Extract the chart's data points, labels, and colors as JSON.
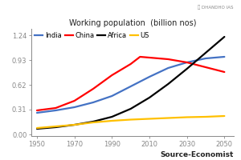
{
  "title": "Working population  (billion nos)",
  "x_ticks": [
    1950,
    1970,
    1990,
    2010,
    2030,
    2050
  ],
  "xlim": [
    1947,
    2055
  ],
  "ylim": [
    -0.02,
    1.32
  ],
  "y_ticks": [
    0.0,
    0.31,
    0.62,
    0.93,
    1.24
  ],
  "series": {
    "India": {
      "color": "#4472C4",
      "x": [
        1950,
        1960,
        1970,
        1980,
        1990,
        2000,
        2010,
        2020,
        2030,
        2040,
        2050
      ],
      "y": [
        0.27,
        0.3,
        0.34,
        0.4,
        0.48,
        0.6,
        0.72,
        0.83,
        0.9,
        0.95,
        0.97
      ]
    },
    "China": {
      "color": "#FF0000",
      "x": [
        1950,
        1960,
        1970,
        1980,
        1990,
        2000,
        2005,
        2010,
        2020,
        2030,
        2040,
        2050
      ],
      "y": [
        0.3,
        0.33,
        0.42,
        0.57,
        0.74,
        0.88,
        0.97,
        0.96,
        0.94,
        0.9,
        0.84,
        0.78
      ]
    },
    "Africa": {
      "color": "#000000",
      "x": [
        1950,
        1960,
        1970,
        1980,
        1990,
        2000,
        2010,
        2020,
        2030,
        2040,
        2050
      ],
      "y": [
        0.07,
        0.09,
        0.12,
        0.16,
        0.22,
        0.32,
        0.46,
        0.63,
        0.82,
        1.02,
        1.22
      ]
    },
    "US": {
      "color": "#FFC000",
      "x": [
        1950,
        1960,
        1970,
        1980,
        1990,
        2000,
        2010,
        2020,
        2030,
        2040,
        2050
      ],
      "y": [
        0.08,
        0.1,
        0.12,
        0.15,
        0.17,
        0.185,
        0.195,
        0.205,
        0.215,
        0.22,
        0.23
      ]
    }
  },
  "source_text": "Source-Economist",
  "background_color": "#FFFFFF",
  "line_width": 1.6,
  "title_fontsize": 7.0,
  "tick_fontsize": 6.0,
  "legend_fontsize": 6.0,
  "source_fontsize": 6.5
}
